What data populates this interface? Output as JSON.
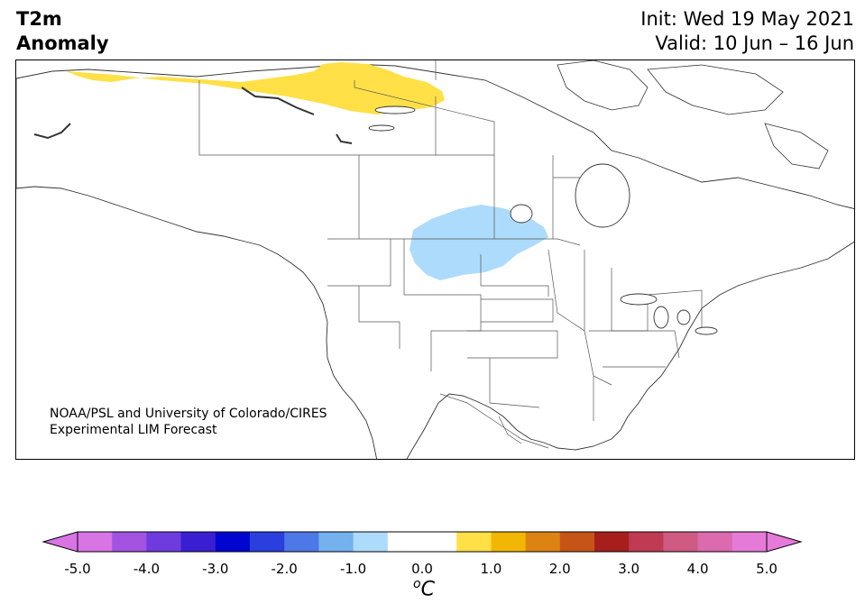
{
  "header": {
    "title_line1": "T2m",
    "title_line2": "Anomaly",
    "init_label": "Init: Wed 19 May 2021",
    "valid_label": "Valid: 10 Jun – 16 Jun"
  },
  "map": {
    "region": "North America",
    "projection_style": "plate-carree-like",
    "anomalies": [
      {
        "name": "warm-anomaly-northern-canada",
        "range": "0.5 to 1.0",
        "color": "#ffe047"
      },
      {
        "name": "cool-anomaly-northern-plains",
        "range": "-1.0 to -0.5",
        "color": "#addbfb"
      }
    ],
    "credit_line1": "NOAA/PSL and University of Colorado/CIRES",
    "credit_line2": "Experimental LIM Forecast"
  },
  "colorbar": {
    "colors": [
      "#d874e4",
      "#a253e2",
      "#6e3bde",
      "#3a1fd2",
      "#0006cf",
      "#2a3fdd",
      "#4d78e6",
      "#75b0ef",
      "#addbfb",
      "#ffffff",
      "#ffffff",
      "#ffe047",
      "#f2b705",
      "#dd8313",
      "#c55416",
      "#a61f1c",
      "#bf3a52",
      "#cf5a82",
      "#db6aaf",
      "#e57ad8"
    ],
    "under_color": "#d874e4",
    "over_color": "#e57ad8",
    "ticks": [
      "-5.0",
      "-4.0",
      "-3.0",
      "-2.0",
      "-1.0",
      "0.0",
      "1.0",
      "2.0",
      "3.0",
      "4.0",
      "5.0"
    ],
    "unit_superscript": "o",
    "unit_main": "C"
  }
}
